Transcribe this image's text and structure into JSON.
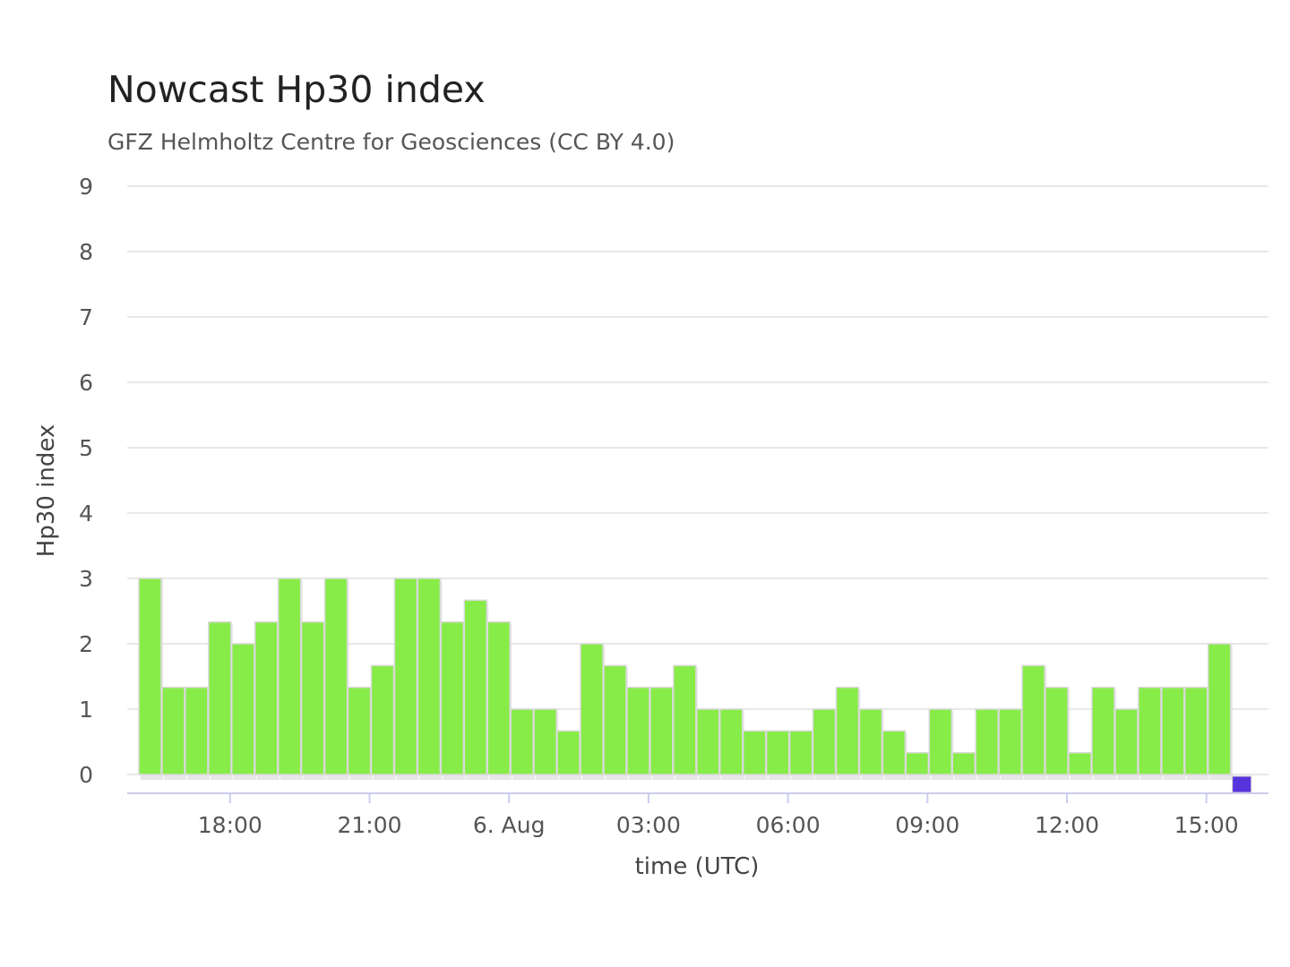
{
  "chart_data": {
    "type": "bar",
    "title": "Nowcast Hp30 index",
    "subtitle": "GFZ Helmholtz Centre for Geosciences (CC BY 4.0)",
    "xlabel": "time (UTC)",
    "ylabel": "Hp30 index",
    "ylim": [
      0,
      9
    ],
    "yticks": [
      0,
      1,
      2,
      3,
      4,
      5,
      6,
      7,
      8,
      9
    ],
    "x_start": "5. Aug 16:00",
    "x_interval": "30 min",
    "xticks": [
      {
        "label": "18:00"
      },
      {
        "label": "21:00"
      },
      {
        "label": "6. Aug"
      },
      {
        "label": "03:00"
      },
      {
        "label": "06:00"
      },
      {
        "label": "09:00"
      },
      {
        "label": "12:00"
      },
      {
        "label": "15:00"
      }
    ],
    "grid": true,
    "legend": "none",
    "colors": {
      "bar": "#87ec47",
      "bar_stroke": "#d9d9d9",
      "highlight": "#5533dd",
      "grid": "#e0e0e0",
      "axis": "#ccccee"
    },
    "series": [
      {
        "values": [
          3,
          1.333,
          1.333,
          2.333,
          2,
          2.333,
          3,
          2.333,
          3,
          1.333,
          1.667,
          3,
          3,
          2.333,
          2.667,
          2.333,
          1,
          1,
          0.667,
          2,
          1.667,
          1.333,
          1.333,
          1.667,
          1,
          1,
          0.667,
          0.667,
          0.667,
          1,
          1.333,
          1,
          0.667,
          0.333,
          1,
          0.333,
          1,
          1,
          1.667,
          1.333,
          0.333,
          1.333,
          1,
          1.333,
          1.333,
          1.333,
          2,
          0
        ],
        "highlight_last": true
      }
    ]
  }
}
